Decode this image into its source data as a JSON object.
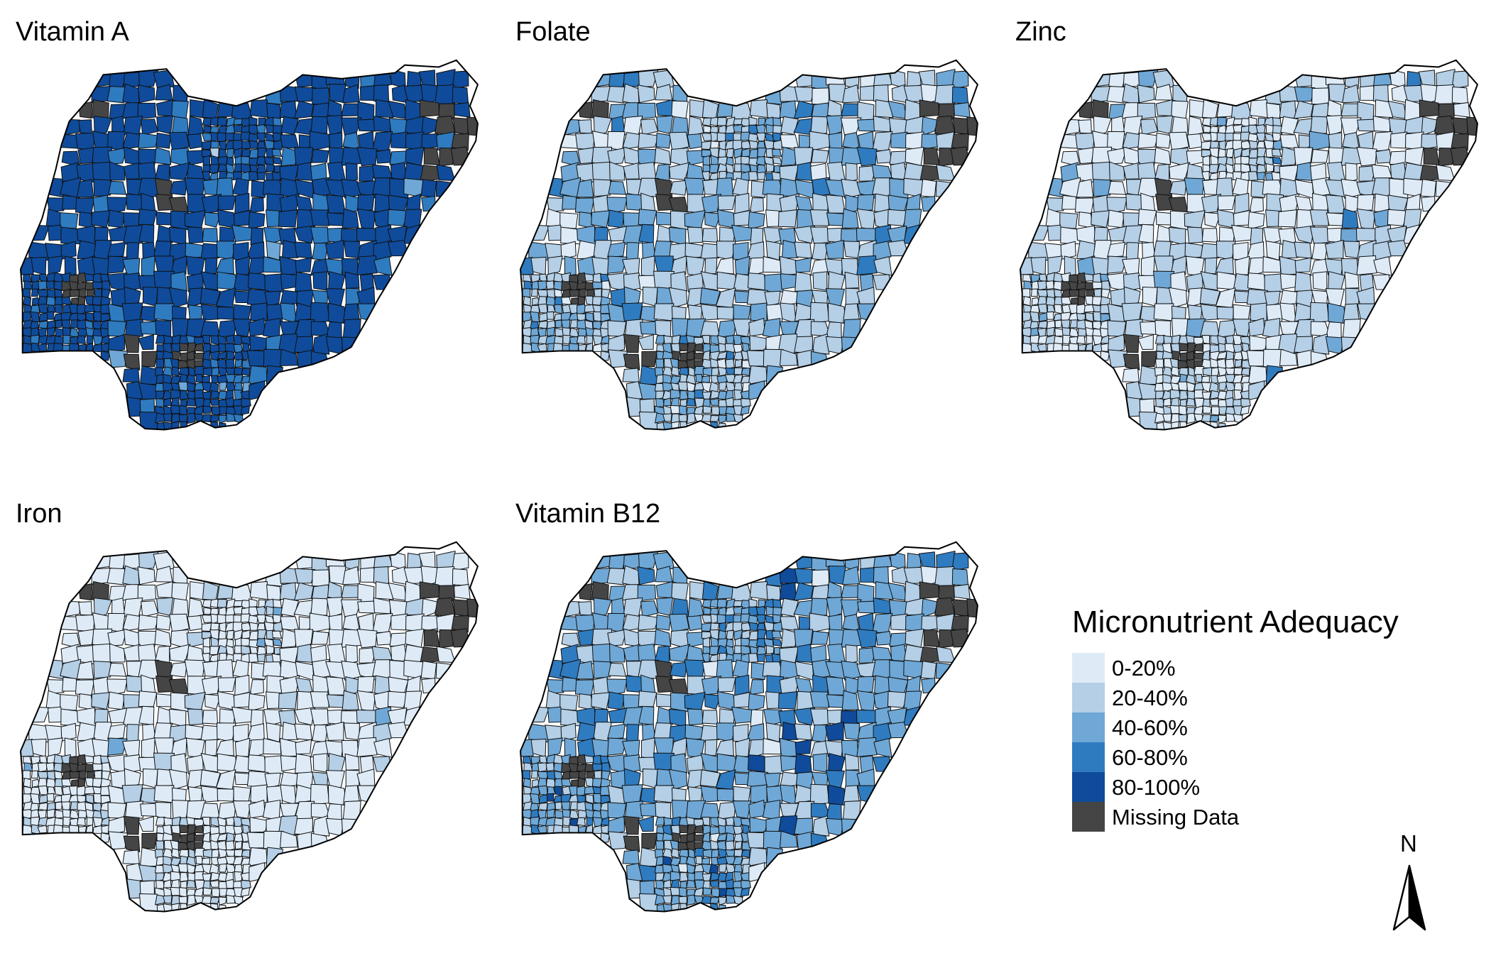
{
  "panels": [
    {
      "title": "Vitamin A",
      "weights": [
        0.01,
        0.02,
        0.07,
        0.18,
        0.72
      ]
    },
    {
      "title": "Folate",
      "weights": [
        0.18,
        0.4,
        0.25,
        0.12,
        0.05
      ]
    },
    {
      "title": "Zinc",
      "weights": [
        0.5,
        0.35,
        0.1,
        0.04,
        0.01
      ]
    },
    {
      "title": "Iron",
      "weights": [
        0.7,
        0.22,
        0.06,
        0.02,
        0.0
      ]
    },
    {
      "title": "Vitamin B12",
      "weights": [
        0.1,
        0.3,
        0.3,
        0.18,
        0.12
      ]
    }
  ],
  "legend": {
    "title": "Micronutrient Adequacy",
    "items": [
      {
        "label": "0-20%",
        "color": "#deebf7"
      },
      {
        "label": "20-40%",
        "color": "#b4cfe6"
      },
      {
        "label": "40-60%",
        "color": "#6fa8d6"
      },
      {
        "label": "60-80%",
        "color": "#2f7bc0"
      },
      {
        "label": "80-100%",
        "color": "#0f4b9a"
      },
      {
        "label": "Missing Data",
        "color": "#454545"
      }
    ]
  },
  "north_arrow": {
    "label": "N"
  }
}
